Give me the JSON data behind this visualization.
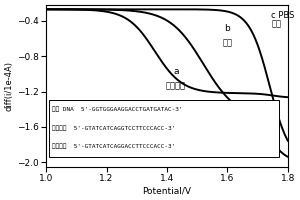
{
  "title": "",
  "xlabel": "Potential/V",
  "ylabel": "diff(i/1e-4A)",
  "xlim": [
    1.0,
    1.8
  ],
  "ylim": [
    -2.05,
    -0.22
  ],
  "yticks": [
    -2.0,
    -1.6,
    -1.2,
    -0.8,
    -0.4
  ],
  "xticks": [
    1.0,
    1.2,
    1.4,
    1.6,
    1.8
  ],
  "annotation_box_lines": [
    "目标 DNA  5'-GGTGGGAAGGACCTGATGATAC-3'",
    "正配探针  5'-GTATCATCAGGTCCTTCCCACC-3'",
    "错配探针  5'-GTATCATCAGGACCTTCCCACC-3'"
  ],
  "label_a": "a\n完美配对",
  "label_b": "b\n错配",
  "label_c": "c PBS\n空白",
  "line_color": "#000000",
  "bg_color": "#ffffff",
  "figsize": [
    3.0,
    2.0
  ],
  "dpi": 100
}
